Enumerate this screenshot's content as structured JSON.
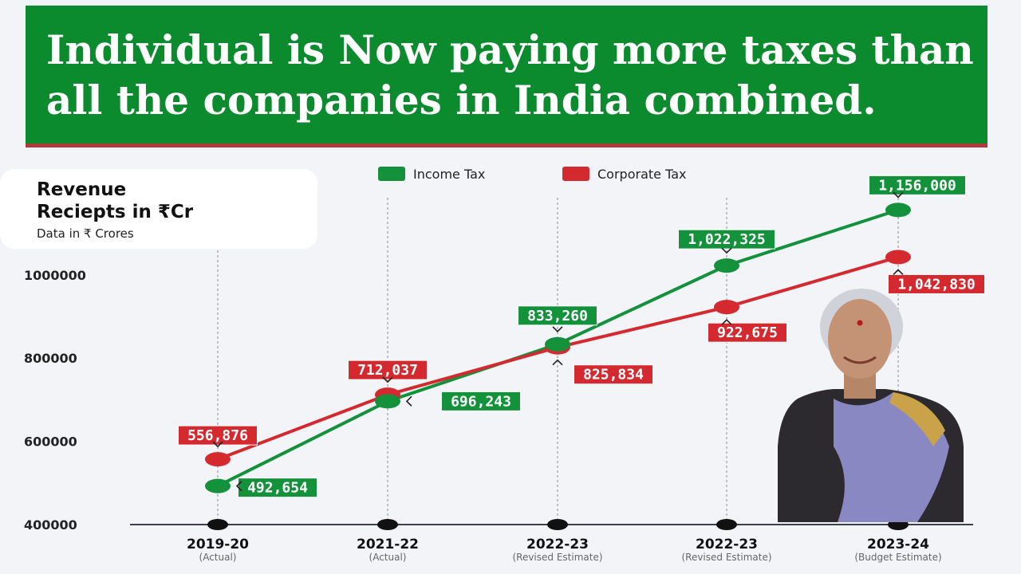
{
  "banner": {
    "title": "Individual is Now paying more taxes than all the companies in India combined."
  },
  "card": {
    "title_line1": "Revenue",
    "title_line2": "Reciepts in ₹Cr",
    "subtitle": "Data in ₹ Crores"
  },
  "colors": {
    "income": "#13913b",
    "corporate": "#d42a2f",
    "banner": "#0b8a2e"
  },
  "chart_data": {
    "type": "line",
    "title": "Revenue Reciepts in ₹Cr",
    "subtitle": "Data in ₹ Crores",
    "categories": [
      "2019-20",
      "2021-22",
      "2022-23",
      "2022-23",
      "2023-24"
    ],
    "category_notes": [
      "(Actual)",
      "(Actual)",
      "(Revised Estimate)",
      "(Revised Estimate)",
      "(Budget Estimate)"
    ],
    "yticks": [
      "400000",
      "600000",
      "800000",
      "1000000"
    ],
    "ylim": [
      400000,
      1200000
    ],
    "grid": "vertical dashed",
    "legend_position": "top",
    "series": [
      {
        "name": "Income Tax",
        "values": [
          492654,
          696243,
          833260,
          1022325,
          1156000
        ],
        "labels": [
          "492,654",
          "696,243",
          "833,260",
          "1,022,325",
          "1,156,000"
        ]
      },
      {
        "name": "Corporate Tax",
        "values": [
          556876,
          712037,
          825834,
          922675,
          1042830
        ],
        "labels": [
          "556,876",
          "712,037",
          "825,834",
          "922,675",
          "1,042,830"
        ]
      }
    ]
  }
}
